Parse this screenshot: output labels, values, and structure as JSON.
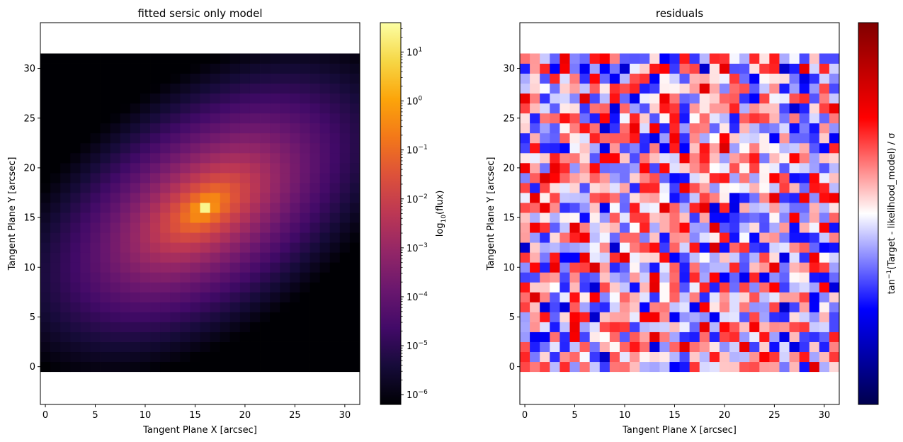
{
  "chart_data": [
    {
      "type": "heatmap",
      "title": "fitted sersic only model",
      "xlabel": "Tangent Plane X [arcsec]",
      "ylabel": "Tangent Plane Y [arcsec]",
      "xlim": [
        -0.5,
        31.5
      ],
      "ylim": [
        -3.8,
        34.6
      ],
      "x_ticks": [
        0,
        5,
        10,
        15,
        20,
        25,
        30
      ],
      "y_ticks": [
        0,
        5,
        10,
        15,
        20,
        25,
        30
      ],
      "grid_shape": [
        32,
        32
      ],
      "model": {
        "peak_x": 16,
        "peak_y": 16,
        "peak_log10_flux": 1.4,
        "min_log10_flux": -6.2,
        "major_axis_angle_deg": 35,
        "axis_ratio": 0.55
      },
      "colormap": "inferno",
      "colorbar": {
        "label_prefix": "log",
        "label_sub": "10",
        "label_suffix": "(flux)",
        "scale": "log",
        "range_exponent": [
          -6.2,
          1.6
        ],
        "ticks": [
          {
            "exp": 1,
            "label": "10",
            "sup": "1"
          },
          {
            "exp": 0,
            "label": "10",
            "sup": "0"
          },
          {
            "exp": -1,
            "label": "10",
            "sup": "−1"
          },
          {
            "exp": -2,
            "label": "10",
            "sup": "−2"
          },
          {
            "exp": -3,
            "label": "10",
            "sup": "−3"
          },
          {
            "exp": -4,
            "label": "10",
            "sup": "−4"
          },
          {
            "exp": -5,
            "label": "10",
            "sup": "−5"
          },
          {
            "exp": -6,
            "label": "10",
            "sup": "−6"
          }
        ]
      }
    },
    {
      "type": "heatmap",
      "title": "residuals",
      "xlabel": "Tangent Plane X [arcsec]",
      "ylabel": "Tangent Plane Y [arcsec]",
      "xlim": [
        -0.5,
        31.5
      ],
      "ylim": [
        -3.8,
        34.6
      ],
      "x_ticks": [
        0,
        5,
        10,
        15,
        20,
        25,
        30
      ],
      "y_ticks": [
        0,
        5,
        10,
        15,
        20,
        25,
        30
      ],
      "grid_shape": [
        32,
        32
      ],
      "colormap": "seismic",
      "value_range": [
        -1.5708,
        1.5708
      ],
      "typical_abs_value": 0.45,
      "colorbar": {
        "label_prefix": "tan",
        "label_sup": "−1",
        "label_suffix": "(Target - likelihood_model) / σ",
        "ticks": []
      }
    }
  ]
}
